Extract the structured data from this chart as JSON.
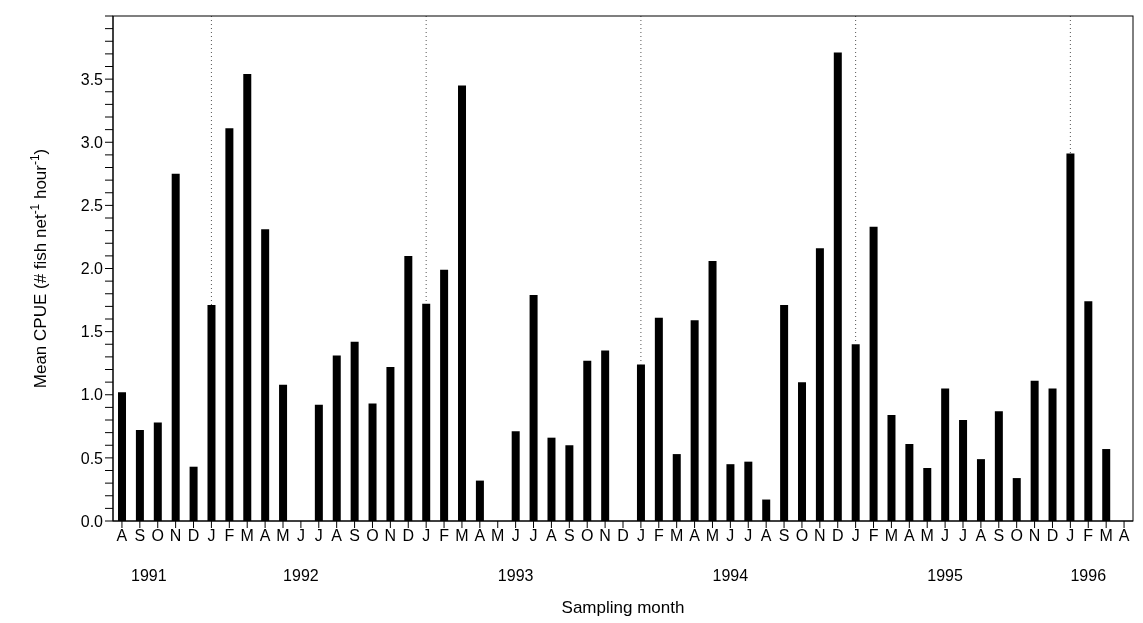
{
  "chart_data": {
    "type": "bar",
    "xlabel": "Sampling month",
    "ylabel": "Mean CPUE  (# fish net$^{-1}$ hour$^{-1}$)",
    "categories": [
      "A",
      "S",
      "O",
      "N",
      "D",
      "J",
      "F",
      "M",
      "A",
      "M",
      "J",
      "J",
      "A",
      "S",
      "O",
      "N",
      "D",
      "J",
      "F",
      "M",
      "A",
      "M",
      "J",
      "J",
      "A",
      "S",
      "O",
      "N",
      "D",
      "J",
      "F",
      "M",
      "A",
      "M",
      "J",
      "J",
      "A",
      "S",
      "O",
      "N",
      "D",
      "J",
      "F",
      "M",
      "A",
      "M",
      "J",
      "J",
      "A",
      "S",
      "O",
      "N",
      "D",
      "J",
      "F",
      "M",
      "A"
    ],
    "values": [
      1.02,
      0.72,
      0.78,
      2.75,
      0.43,
      1.71,
      3.11,
      3.54,
      2.31,
      1.08,
      null,
      0.92,
      1.31,
      1.42,
      0.93,
      1.22,
      2.1,
      1.72,
      1.99,
      3.45,
      0.32,
      null,
      0.71,
      1.79,
      0.66,
      0.6,
      1.27,
      1.35,
      null,
      1.24,
      1.61,
      0.53,
      1.59,
      2.06,
      0.45,
      0.47,
      0.17,
      1.71,
      1.1,
      2.16,
      3.71,
      1.4,
      2.33,
      0.84,
      0.61,
      0.42,
      1.05,
      0.8,
      0.49,
      0.87,
      0.34,
      1.11,
      1.05,
      2.91,
      1.74,
      0.57,
      null
    ],
    "color": "#000000",
    "ylim": [
      0,
      4
    ],
    "yticks": [
      {
        "value": 0,
        "label": "0.0"
      },
      {
        "value": 0.1,
        "label": null
      },
      {
        "value": 0.2,
        "label": null
      },
      {
        "value": 0.3,
        "label": null
      },
      {
        "value": 0.4,
        "label": null
      },
      {
        "value": 0.5,
        "label": "0.5"
      },
      {
        "value": 0.6,
        "label": null
      },
      {
        "value": 0.7,
        "label": null
      },
      {
        "value": 0.8,
        "label": null
      },
      {
        "value": 0.9,
        "label": null
      },
      {
        "value": 1,
        "label": "1.0"
      },
      {
        "value": 1.1,
        "label": null
      },
      {
        "value": 1.2,
        "label": null
      },
      {
        "value": 1.3,
        "label": null
      },
      {
        "value": 1.4,
        "label": null
      },
      {
        "value": 1.5,
        "label": "1.5"
      },
      {
        "value": 1.6,
        "label": null
      },
      {
        "value": 1.7,
        "label": null
      },
      {
        "value": 1.8,
        "label": null
      },
      {
        "value": 1.9,
        "label": null
      },
      {
        "value": 2,
        "label": "2.0"
      },
      {
        "value": 2.1,
        "label": null
      },
      {
        "value": 2.2,
        "label": null
      },
      {
        "value": 2.3,
        "label": null
      },
      {
        "value": 2.4,
        "label": null
      },
      {
        "value": 2.5,
        "label": "2.5"
      },
      {
        "value": 2.6,
        "label": null
      },
      {
        "value": 2.7,
        "label": null
      },
      {
        "value": 2.8,
        "label": null
      },
      {
        "value": 2.9,
        "label": null
      },
      {
        "value": 3,
        "label": "3.0"
      },
      {
        "value": 3.1,
        "label": null
      },
      {
        "value": 3.2,
        "label": null
      },
      {
        "value": 3.3,
        "label": null
      },
      {
        "value": 3.4,
        "label": null
      },
      {
        "value": 3.5,
        "label": "3.5"
      },
      {
        "value": 3.6,
        "label": null
      },
      {
        "value": 3.7,
        "label": null
      },
      {
        "value": 3.8,
        "label": null
      },
      {
        "value": 3.9,
        "label": null
      },
      {
        "value": 4,
        "label": null
      }
    ],
    "annotations": [
      "1991",
      "1992",
      "1993",
      "1994",
      "1995",
      "1996"
    ],
    "grid": false,
    "legend": false
  }
}
